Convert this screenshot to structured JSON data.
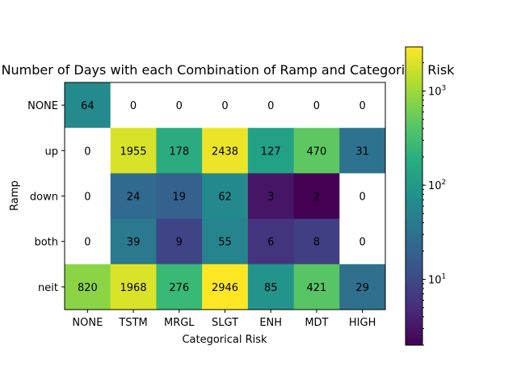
{
  "chart_data": {
    "type": "heatmap",
    "title": "Number of Days with each Combination of Ramp and Categorical Risk",
    "xlabel": "Categorical Risk",
    "ylabel": "Ramp",
    "x_categories": [
      "NONE",
      "TSTM",
      "MRGL",
      "SLGT",
      "ENH",
      "MDT",
      "HIGH"
    ],
    "y_categories": [
      "NONE",
      "up",
      "down",
      "both",
      "neit"
    ],
    "values": [
      [
        64,
        0,
        0,
        0,
        0,
        0,
        0
      ],
      [
        0,
        1955,
        178,
        2438,
        127,
        470,
        31
      ],
      [
        0,
        24,
        19,
        62,
        3,
        2,
        0
      ],
      [
        0,
        39,
        9,
        55,
        6,
        8,
        0
      ],
      [
        820,
        1968,
        276,
        2946,
        85,
        421,
        29
      ]
    ],
    "color_scale": {
      "type": "log",
      "colormap": "viridis",
      "vmin": 2,
      "vmax": 2946,
      "zero_color": "#ffffff",
      "tick_labels": [
        "10^1",
        "10^2",
        "10^3"
      ],
      "tick_values": [
        10,
        100,
        1000
      ]
    }
  }
}
